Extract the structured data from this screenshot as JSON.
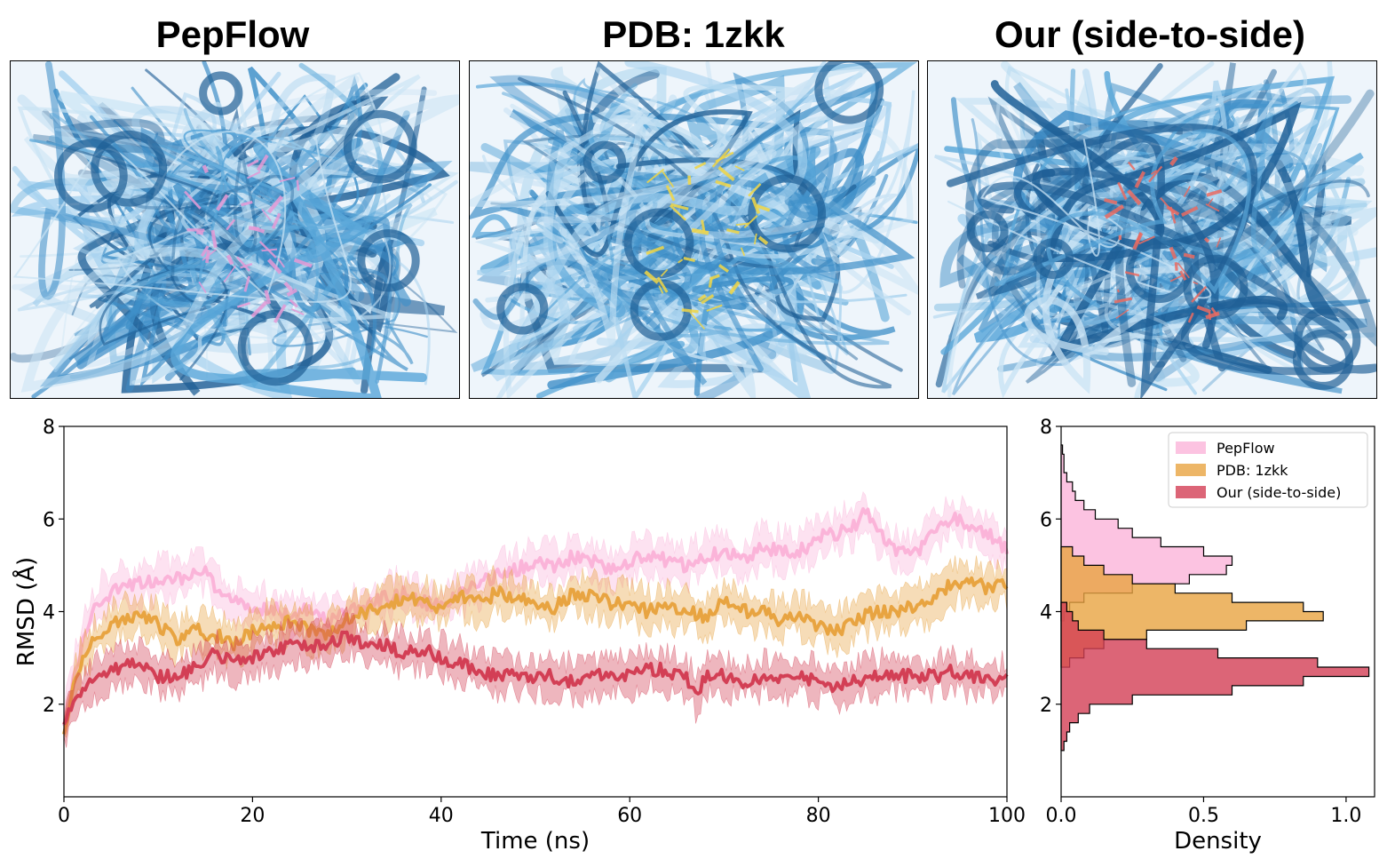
{
  "panels": [
    {
      "title": "PepFlow",
      "visual": "protein-peptide-ensemble-pink",
      "ligand_color": "#e59ad6"
    },
    {
      "title": "PDB: 1zkk",
      "visual": "protein-peptide-ensemble-yellow",
      "ligand_color": "#f1d644"
    },
    {
      "title": "Our (side-to-side)",
      "visual": "protein-peptide-ensemble-red",
      "ligand_color": "#ea6b62"
    }
  ],
  "colors": {
    "protein_dark": "#1f5f96",
    "protein_mid": "#3f8fc8",
    "protein_light": "#a9d3ef",
    "pepflow": "#fbb4d9",
    "pdb": "#e8a441",
    "ours": "#d33f55"
  },
  "chart_data": [
    {
      "type": "line",
      "title": "",
      "xlabel": "Time (ns)",
      "ylabel": "RMSD (Å)",
      "xlim": [
        0,
        100
      ],
      "ylim": [
        0,
        8
      ],
      "xticks": [
        0,
        20,
        40,
        60,
        80,
        100
      ],
      "yticks": [
        2,
        4,
        6,
        8
      ],
      "series": [
        {
          "name": "PepFlow",
          "color": "#fbb4d9",
          "x": [
            0,
            1,
            2,
            3,
            4,
            5,
            6,
            8,
            10,
            12,
            14,
            15,
            16,
            18,
            20,
            22,
            24,
            26,
            28,
            30,
            32,
            34,
            36,
            38,
            40,
            42,
            44,
            46,
            48,
            50,
            52,
            54,
            56,
            58,
            60,
            62,
            64,
            66,
            68,
            70,
            72,
            74,
            76,
            78,
            80,
            82,
            84,
            85,
            86,
            88,
            90,
            92,
            94,
            96,
            98,
            100
          ],
          "values": [
            1.6,
            2.6,
            3.4,
            4.0,
            4.3,
            4.4,
            4.5,
            4.6,
            4.7,
            4.7,
            4.8,
            4.9,
            4.5,
            4.2,
            4.0,
            4.1,
            3.9,
            4.1,
            3.8,
            4.0,
            4.1,
            4.3,
            4.4,
            4.2,
            4.1,
            4.4,
            4.6,
            4.8,
            4.9,
            5.1,
            5.0,
            5.2,
            5.1,
            4.9,
            5.1,
            5.2,
            5.1,
            5.0,
            5.2,
            5.3,
            5.1,
            5.4,
            5.3,
            5.3,
            5.6,
            5.7,
            5.9,
            6.2,
            5.8,
            5.3,
            5.2,
            5.6,
            6.0,
            5.9,
            5.7,
            5.3
          ]
        },
        {
          "name": "PDB: 1zkk",
          "color": "#e8a441",
          "x": [
            0,
            1,
            2,
            3,
            4,
            5,
            6,
            8,
            10,
            12,
            14,
            16,
            18,
            20,
            22,
            24,
            26,
            28,
            30,
            32,
            34,
            36,
            38,
            40,
            42,
            44,
            46,
            48,
            50,
            52,
            54,
            56,
            58,
            60,
            62,
            64,
            66,
            68,
            70,
            72,
            74,
            76,
            78,
            80,
            82,
            84,
            86,
            88,
            90,
            92,
            94,
            96,
            98,
            100
          ],
          "values": [
            1.5,
            2.4,
            3.0,
            3.3,
            3.5,
            3.7,
            3.8,
            4.0,
            3.7,
            3.4,
            3.6,
            3.5,
            3.3,
            3.6,
            3.7,
            3.8,
            3.6,
            3.5,
            3.8,
            4.0,
            4.1,
            4.3,
            4.2,
            4.1,
            4.3,
            4.2,
            4.4,
            4.3,
            4.2,
            4.1,
            4.4,
            4.3,
            4.2,
            4.2,
            4.0,
            4.1,
            4.0,
            3.9,
            4.2,
            4.0,
            4.0,
            3.8,
            3.9,
            3.7,
            3.6,
            3.8,
            4.0,
            4.0,
            4.1,
            4.2,
            4.6,
            4.7,
            4.5,
            4.6
          ]
        },
        {
          "name": "Our (side-to-side)",
          "color": "#d33f55",
          "x": [
            0,
            1,
            2,
            3,
            4,
            5,
            6,
            8,
            10,
            12,
            14,
            16,
            18,
            20,
            22,
            24,
            26,
            28,
            30,
            32,
            34,
            36,
            38,
            40,
            42,
            44,
            46,
            48,
            50,
            52,
            54,
            56,
            58,
            60,
            62,
            64,
            66,
            67,
            68,
            70,
            72,
            74,
            76,
            78,
            80,
            82,
            84,
            86,
            88,
            90,
            92,
            94,
            96,
            98,
            100
          ],
          "values": [
            1.5,
            2.0,
            2.3,
            2.5,
            2.6,
            2.7,
            2.8,
            2.9,
            2.6,
            2.6,
            2.8,
            3.1,
            2.9,
            3.0,
            3.1,
            3.3,
            3.2,
            3.3,
            3.5,
            3.2,
            3.3,
            3.1,
            3.2,
            3.0,
            2.9,
            2.7,
            2.6,
            2.6,
            2.6,
            2.6,
            2.5,
            2.6,
            2.6,
            2.6,
            2.8,
            2.7,
            2.6,
            2.2,
            2.6,
            2.6,
            2.5,
            2.6,
            2.5,
            2.6,
            2.5,
            2.4,
            2.5,
            2.6,
            2.6,
            2.6,
            2.6,
            2.7,
            2.6,
            2.6,
            2.5
          ]
        }
      ]
    },
    {
      "type": "histogram",
      "orientation": "horizontal",
      "title": "",
      "xlabel": "Density",
      "ylabel": "",
      "xlim": [
        0,
        1.1
      ],
      "ylim": [
        0,
        8
      ],
      "xticks": [
        0.0,
        0.5,
        1.0
      ],
      "xtick_labels": [
        "0.0",
        "0.5",
        "1.0"
      ],
      "yticks": [
        2,
        4,
        6,
        8
      ],
      "legend": {
        "position": "top-right",
        "entries": [
          "PepFlow",
          "PDB: 1zkk",
          "Our (side-to-side)"
        ]
      },
      "series": [
        {
          "name": "PepFlow",
          "color": "#fbb4d9",
          "bin_centers": [
            3.9,
            4.1,
            4.3,
            4.5,
            4.7,
            4.9,
            5.1,
            5.3,
            5.5,
            5.7,
            5.9,
            6.1,
            6.3,
            6.5,
            6.7,
            6.9,
            7.1,
            7.3,
            7.5
          ],
          "density": [
            0.01,
            0.03,
            0.08,
            0.25,
            0.45,
            0.58,
            0.6,
            0.5,
            0.35,
            0.25,
            0.2,
            0.12,
            0.08,
            0.05,
            0.04,
            0.02,
            0.01,
            0.01,
            0.005
          ]
        },
        {
          "name": "PDB: 1zkk",
          "color": "#e8a441",
          "bin_centers": [
            2.9,
            3.1,
            3.3,
            3.5,
            3.7,
            3.9,
            4.1,
            4.3,
            4.5,
            4.7,
            4.9,
            5.1,
            5.3
          ],
          "density": [
            0.03,
            0.08,
            0.15,
            0.3,
            0.65,
            0.92,
            0.85,
            0.6,
            0.4,
            0.25,
            0.15,
            0.08,
            0.04
          ]
        },
        {
          "name": "Our (side-to-side)",
          "color": "#d33f55",
          "bin_centers": [
            1.1,
            1.3,
            1.5,
            1.7,
            1.9,
            2.1,
            2.3,
            2.5,
            2.7,
            2.9,
            3.1,
            3.3,
            3.5,
            3.7,
            3.9,
            4.1
          ],
          "density": [
            0.01,
            0.02,
            0.03,
            0.06,
            0.1,
            0.25,
            0.6,
            0.85,
            1.08,
            0.9,
            0.55,
            0.3,
            0.15,
            0.06,
            0.04,
            0.02
          ]
        }
      ]
    }
  ]
}
